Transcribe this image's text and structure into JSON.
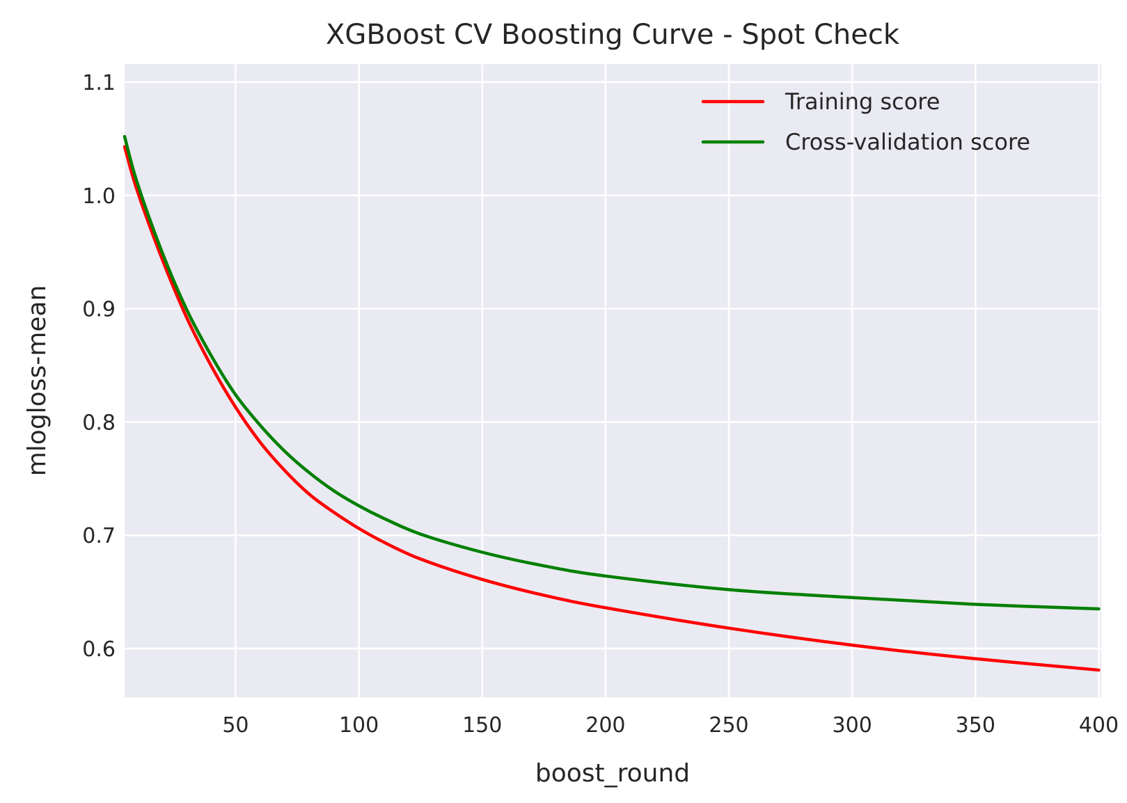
{
  "chart_data": {
    "type": "line",
    "title": "XGBoost CV Boosting Curve - Spot Check",
    "xlabel": "boost_round",
    "ylabel": "mlogloss-mean",
    "xlim": [
      5,
      401
    ],
    "ylim": [
      0.557,
      1.116
    ],
    "xticks": [
      50,
      100,
      150,
      200,
      250,
      300,
      350,
      400
    ],
    "xtick_labels": [
      "50",
      "100",
      "150",
      "200",
      "250",
      "300",
      "350",
      "400"
    ],
    "yticks": [
      0.6,
      0.7,
      0.8,
      0.9,
      1.0,
      1.1
    ],
    "ytick_labels": [
      "0.6",
      "0.7",
      "0.8",
      "0.9",
      "1.0",
      "1.1"
    ],
    "grid": true,
    "legend_position": "top-right",
    "background": "#eaeaf2",
    "series": [
      {
        "name": "Training score",
        "color": "#ff0000",
        "x": [
          5,
          10,
          20,
          30,
          40,
          50,
          60,
          70,
          80,
          90,
          100,
          110,
          125,
          150,
          175,
          200,
          250,
          300,
          350,
          400
        ],
        "y": [
          1.043,
          1.005,
          0.945,
          0.893,
          0.85,
          0.813,
          0.782,
          0.757,
          0.736,
          0.72,
          0.706,
          0.694,
          0.679,
          0.661,
          0.647,
          0.636,
          0.618,
          0.603,
          0.591,
          0.581
        ]
      },
      {
        "name": "Cross-validation score",
        "color": "#008000",
        "x": [
          5,
          10,
          20,
          30,
          40,
          50,
          60,
          70,
          80,
          90,
          100,
          110,
          125,
          150,
          175,
          200,
          250,
          300,
          350,
          400
        ],
        "y": [
          1.052,
          1.012,
          0.951,
          0.9,
          0.859,
          0.824,
          0.797,
          0.774,
          0.755,
          0.739,
          0.726,
          0.715,
          0.701,
          0.685,
          0.673,
          0.664,
          0.652,
          0.645,
          0.639,
          0.635
        ]
      }
    ]
  }
}
